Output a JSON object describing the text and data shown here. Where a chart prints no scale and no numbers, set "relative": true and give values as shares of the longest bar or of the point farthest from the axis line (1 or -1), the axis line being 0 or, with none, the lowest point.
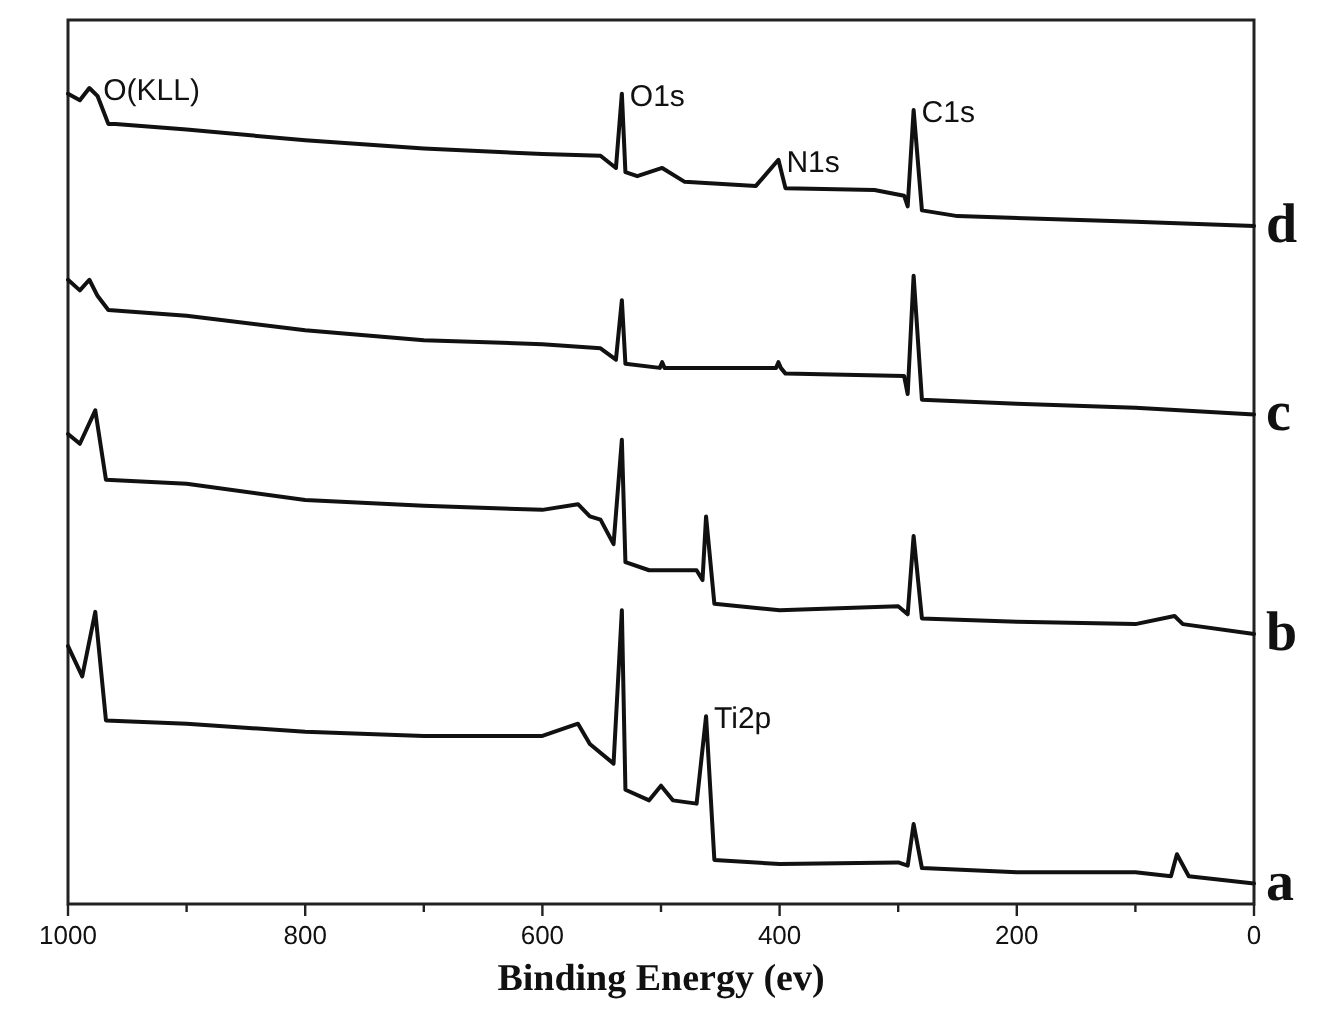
{
  "chart_data": {
    "type": "line",
    "relative": true,
    "xlabel": "Binding Energy (ev)",
    "xlim": [
      1000,
      0
    ],
    "xticks": [
      1000,
      {
        "value": 900,
        "label": null
      },
      800,
      {
        "value": 700,
        "label": null
      },
      600,
      {
        "value": 500,
        "label": null
      },
      400,
      {
        "value": 300,
        "label": null
      },
      200,
      {
        "value": 100,
        "label": null
      },
      0
    ],
    "series": [
      {
        "name": "d",
        "color": "#111111",
        "x": [
          1000,
          990,
          982,
          975,
          966,
          960,
          900,
          800,
          700,
          600,
          551,
          538,
          533,
          530,
          520,
          499,
          480,
          420,
          401,
          395,
          320,
          295,
          292,
          287,
          280,
          250,
          100,
          0
        ],
        "values": [
          0.993,
          0.985,
          1.0,
          0.99,
          0.956,
          0.956,
          0.949,
          0.936,
          0.926,
          0.919,
          0.917,
          0.902,
          0.993,
          0.897,
          0.892,
          0.902,
          0.885,
          0.88,
          0.912,
          0.877,
          0.875,
          0.868,
          0.855,
          0.973,
          0.85,
          0.843,
          0.836,
          0.831
        ]
      },
      {
        "name": "c",
        "color": "#111111",
        "x": [
          1000,
          990,
          982,
          975,
          966,
          900,
          800,
          700,
          600,
          551,
          538,
          533,
          530,
          501,
          499,
          497,
          403,
          401,
          399,
          395,
          295,
          292,
          287,
          280,
          200,
          100,
          0
        ],
        "values": [
          0.765,
          0.752,
          0.765,
          0.745,
          0.728,
          0.721,
          0.703,
          0.691,
          0.686,
          0.681,
          0.667,
          0.74,
          0.662,
          0.657,
          0.664,
          0.657,
          0.657,
          0.664,
          0.657,
          0.65,
          0.647,
          0.625,
          0.77,
          0.618,
          0.613,
          0.608,
          0.6
        ]
      },
      {
        "name": "b",
        "color": "#111111",
        "x": [
          1000,
          990,
          977,
          968,
          900,
          800,
          700,
          600,
          570,
          560,
          551,
          540,
          533,
          530,
          510,
          470,
          465,
          462,
          455,
          400,
          300,
          292,
          287,
          280,
          200,
          100,
          67,
          60,
          0
        ],
        "values": [
          0.576,
          0.564,
          0.605,
          0.52,
          0.515,
          0.495,
          0.488,
          0.483,
          0.49,
          0.475,
          0.471,
          0.441,
          0.569,
          0.419,
          0.409,
          0.409,
          0.397,
          0.475,
          0.368,
          0.36,
          0.365,
          0.355,
          0.451,
          0.35,
          0.346,
          0.343,
          0.353,
          0.343,
          0.331
        ]
      },
      {
        "name": "a",
        "color": "#111111",
        "x": [
          1000,
          988,
          977,
          968,
          900,
          800,
          700,
          600,
          570,
          560,
          540,
          533,
          530,
          510,
          500,
          490,
          470,
          462,
          455,
          400,
          300,
          292,
          287,
          280,
          200,
          100,
          70,
          65,
          55,
          0
        ],
        "values": [
          0.316,
          0.279,
          0.358,
          0.225,
          0.221,
          0.211,
          0.206,
          0.206,
          0.221,
          0.196,
          0.172,
          0.36,
          0.14,
          0.127,
          0.145,
          0.127,
          0.123,
          0.23,
          0.054,
          0.049,
          0.051,
          0.047,
          0.098,
          0.044,
          0.039,
          0.039,
          0.034,
          0.061,
          0.034,
          0.025
        ]
      }
    ],
    "annotations": [
      {
        "text": "O(KLL)",
        "x": 977,
        "y": 1.0
      },
      {
        "text": "O1s",
        "x": 533,
        "y": 0.993
      },
      {
        "text": "N1s",
        "x": 401,
        "y": 0.912
      },
      {
        "text": "C1s",
        "x": 287,
        "y": 0.973
      },
      {
        "text": "Ti2p",
        "x": 462,
        "y": 0.23
      }
    ]
  }
}
